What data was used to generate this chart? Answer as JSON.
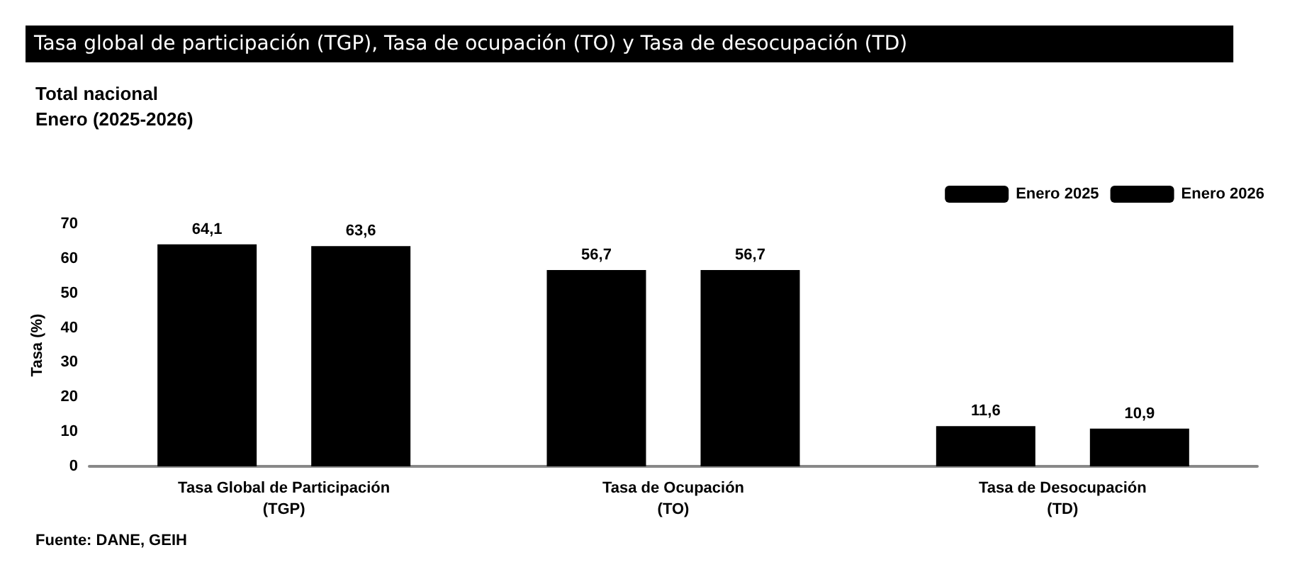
{
  "chart_data": {
    "type": "bar",
    "title": "Tasa global de participación (TGP), Tasa de ocupación (TO) y Tasa de desocupación (TD)",
    "subtitle": "Total nacional\nEnero (2025-2026)",
    "ylabel": "Tasa (%)",
    "annotations": [
      "Fuente: DANE, GEIH"
    ],
    "categories": [
      "Tasa Global de Participación\n(TGP)",
      "Tasa de Ocupación\n(TO)",
      "Tasa de Desocupación\n(TD)"
    ],
    "series": [
      {
        "name": "Enero 2025",
        "color": "#000000",
        "values": [
          64.1,
          56.7,
          11.6
        ],
        "value_labels": [
          "64,1",
          "56,7",
          "11,6"
        ]
      },
      {
        "name": "Enero 2026",
        "color": "#000000",
        "values": [
          63.6,
          56.7,
          10.9
        ],
        "value_labels": [
          "63,6",
          "56,7",
          "10,9"
        ]
      }
    ],
    "ylim": [
      0,
      70
    ],
    "yticks": [
      0,
      10,
      20,
      30,
      40,
      50,
      60,
      70
    ],
    "grid": false,
    "legend": "top right"
  }
}
